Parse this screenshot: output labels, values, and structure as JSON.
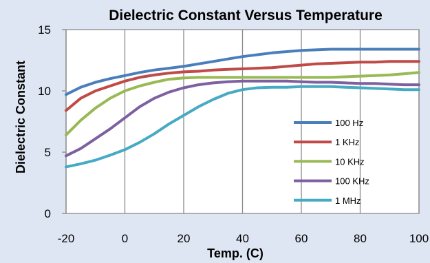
{
  "chart_data": {
    "type": "line",
    "title": "Dielectric Constant Versus Temperature",
    "xlabel": "Temp. (C)",
    "ylabel": "Dielectric Constant",
    "xlim": [
      -20,
      100
    ],
    "ylim": [
      0,
      15
    ],
    "x_ticks": [
      -20,
      0,
      20,
      40,
      60,
      80,
      100
    ],
    "y_ticks": [
      0,
      5,
      10,
      15
    ],
    "grid": "vertical",
    "legend_position": "right",
    "x": [
      -20,
      -15,
      -10,
      -5,
      0,
      5,
      10,
      15,
      20,
      25,
      30,
      35,
      40,
      45,
      50,
      55,
      60,
      65,
      70,
      75,
      80,
      85,
      90,
      95,
      100
    ],
    "series": [
      {
        "name": "100  Hz",
        "color": "#4a7ebb",
        "values": [
          9.7,
          10.3,
          10.7,
          11.0,
          11.25,
          11.5,
          11.7,
          11.85,
          12.0,
          12.2,
          12.4,
          12.6,
          12.8,
          12.95,
          13.1,
          13.2,
          13.3,
          13.35,
          13.4,
          13.4,
          13.4,
          13.4,
          13.4,
          13.4,
          13.4
        ]
      },
      {
        "name": "1 KHz",
        "color": "#be4b48",
        "values": [
          8.4,
          9.4,
          10.0,
          10.4,
          10.8,
          11.1,
          11.3,
          11.45,
          11.55,
          11.6,
          11.7,
          11.75,
          11.8,
          11.85,
          11.9,
          12.0,
          12.1,
          12.2,
          12.25,
          12.3,
          12.35,
          12.35,
          12.4,
          12.4,
          12.4
        ]
      },
      {
        "name": "10 KHz",
        "color": "#98b954",
        "values": [
          6.4,
          7.6,
          8.6,
          9.4,
          10.0,
          10.4,
          10.7,
          10.95,
          11.05,
          11.1,
          11.1,
          11.1,
          11.1,
          11.1,
          11.1,
          11.1,
          11.1,
          11.1,
          11.1,
          11.15,
          11.2,
          11.25,
          11.3,
          11.4,
          11.5
        ]
      },
      {
        "name": "100 KHz",
        "color": "#7d60a0",
        "values": [
          4.7,
          5.3,
          6.1,
          6.9,
          7.8,
          8.7,
          9.4,
          9.9,
          10.25,
          10.5,
          10.65,
          10.75,
          10.8,
          10.8,
          10.8,
          10.8,
          10.75,
          10.7,
          10.7,
          10.65,
          10.6,
          10.6,
          10.55,
          10.5,
          10.5
        ]
      },
      {
        "name": "1 MHz",
        "color": "#46aac5",
        "values": [
          3.8,
          4.05,
          4.35,
          4.75,
          5.2,
          5.8,
          6.5,
          7.3,
          8.0,
          8.7,
          9.3,
          9.8,
          10.1,
          10.25,
          10.3,
          10.3,
          10.35,
          10.35,
          10.35,
          10.3,
          10.25,
          10.2,
          10.15,
          10.1,
          10.1
        ]
      }
    ]
  }
}
